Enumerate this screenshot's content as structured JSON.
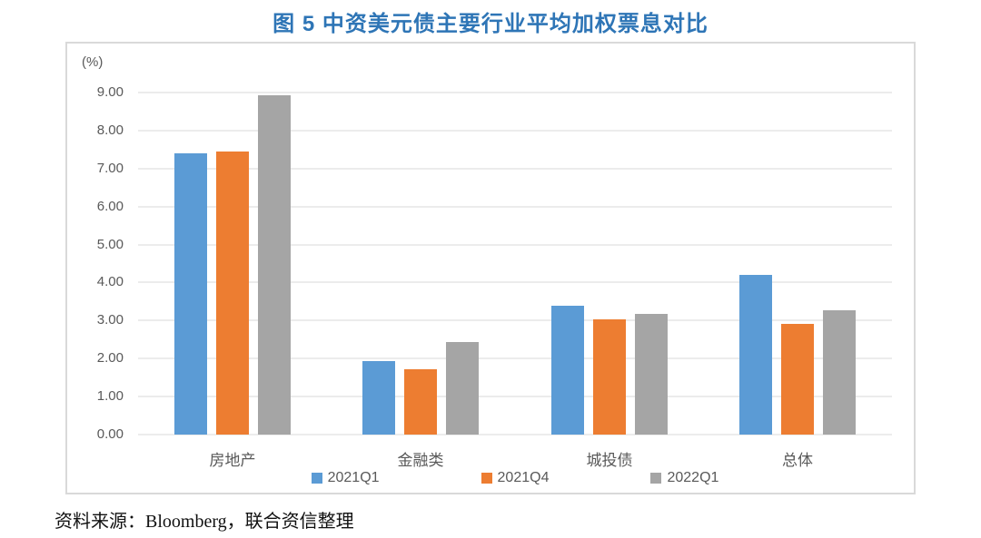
{
  "page": {
    "title": "图 5 中资美元债主要行业平均加权票息对比",
    "source": "资料来源：Bloomberg，联合资信整理"
  },
  "chart_data": {
    "type": "bar",
    "title": "图 5 中资美元债主要行业平均加权票息对比",
    "unit_label": "(%)",
    "categories": [
      "房地产",
      "金融类",
      "城投债",
      "总体"
    ],
    "series": [
      {
        "name": "2021Q1",
        "color": "#5B9BD5",
        "values": [
          7.4,
          1.93,
          3.39,
          4.19
        ]
      },
      {
        "name": "2021Q4",
        "color": "#ED7D31",
        "values": [
          7.46,
          1.71,
          3.02,
          2.91
        ]
      },
      {
        "name": "2022Q1",
        "color": "#A5A5A5",
        "values": [
          8.93,
          2.44,
          3.18,
          3.28
        ]
      }
    ],
    "ylim": [
      0,
      9
    ],
    "ytick_step": 1.0,
    "ytick_labels": [
      "9.00",
      "8.00",
      "7.00",
      "6.00",
      "5.00",
      "4.00",
      "3.00",
      "2.00",
      "1.00",
      "0.00"
    ],
    "grid": true,
    "legend_position": "bottom",
    "xlabel": "",
    "ylabel": "(%)"
  },
  "colors": {
    "title": "#2E75B6",
    "axis_text": "#595959",
    "gridline": "#ECECEC",
    "frame_border": "#D9D9D9",
    "background": "#FFFFFF"
  }
}
